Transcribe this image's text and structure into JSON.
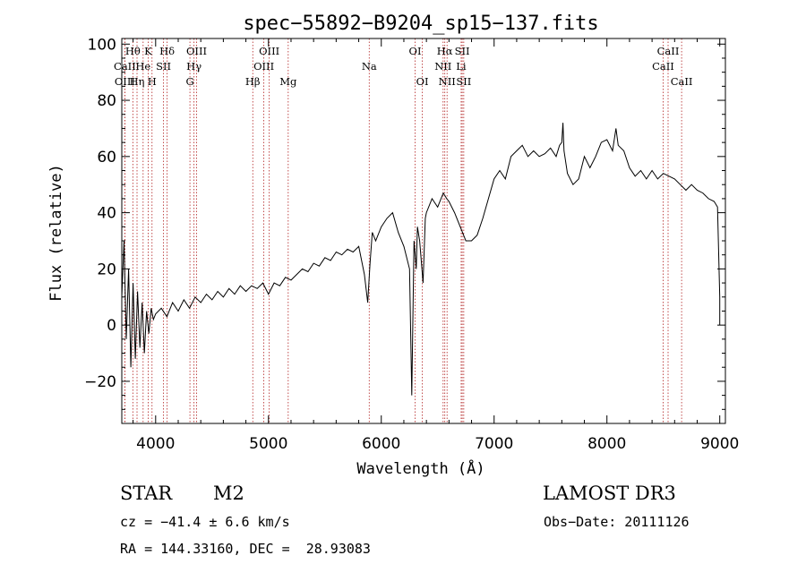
{
  "chart_data": {
    "type": "line",
    "title": "spec−55892−B9204_sp15−137.fits",
    "xlabel": "Wavelength (Å)",
    "ylabel": "Flux (relative)",
    "xlim": [
      3700,
      9050
    ],
    "ylim": [
      -35,
      102
    ],
    "xticks": [
      4000,
      5000,
      6000,
      7000,
      8000,
      9000
    ],
    "xtick_labels": [
      "4000",
      "5000",
      "6000",
      "7000",
      "8000",
      "9000"
    ],
    "yticks": [
      -20,
      0,
      20,
      40,
      60,
      80,
      100
    ],
    "ytick_labels": [
      "−20",
      "0",
      "20",
      "40",
      "60",
      "80",
      "100"
    ],
    "series": [
      {
        "name": "spectrum",
        "x": [
          3700,
          3720,
          3740,
          3760,
          3780,
          3800,
          3820,
          3840,
          3860,
          3880,
          3900,
          3920,
          3940,
          3960,
          3980,
          4000,
          4050,
          4100,
          4150,
          4200,
          4250,
          4300,
          4350,
          4400,
          4450,
          4500,
          4550,
          4600,
          4650,
          4700,
          4750,
          4800,
          4850,
          4900,
          4950,
          5000,
          5050,
          5100,
          5150,
          5200,
          5250,
          5300,
          5350,
          5400,
          5450,
          5500,
          5550,
          5600,
          5650,
          5700,
          5750,
          5800,
          5850,
          5880,
          5900,
          5920,
          5950,
          6000,
          6050,
          6100,
          6150,
          6200,
          6250,
          6270,
          6290,
          6300,
          6310,
          6320,
          6340,
          6370,
          6390,
          6400,
          6450,
          6500,
          6550,
          6580,
          6600,
          6650,
          6700,
          6750,
          6800,
          6850,
          6900,
          6950,
          7000,
          7050,
          7100,
          7150,
          7200,
          7250,
          7300,
          7350,
          7400,
          7450,
          7500,
          7550,
          7580,
          7600,
          7610,
          7620,
          7650,
          7700,
          7750,
          7800,
          7850,
          7900,
          7950,
          8000,
          8050,
          8080,
          8100,
          8150,
          8200,
          8250,
          8300,
          8350,
          8400,
          8450,
          8500,
          8550,
          8600,
          8650,
          8700,
          8750,
          8800,
          8850,
          8900,
          8950,
          8980,
          9000,
          9000
        ],
        "y": [
          10,
          30,
          -5,
          20,
          -15,
          15,
          -12,
          12,
          -8,
          8,
          -10,
          5,
          -3,
          6,
          2,
          4,
          6,
          3,
          8,
          5,
          9,
          6,
          10,
          8,
          11,
          9,
          12,
          10,
          13,
          11,
          14,
          12,
          14,
          13,
          15,
          11,
          15,
          14,
          17,
          16,
          18,
          20,
          19,
          22,
          21,
          24,
          23,
          26,
          25,
          27,
          26,
          28,
          18,
          8,
          22,
          33,
          30,
          35,
          38,
          40,
          33,
          28,
          20,
          -25,
          30,
          25,
          20,
          35,
          30,
          15,
          38,
          40,
          45,
          42,
          47,
          45,
          44,
          40,
          35,
          30,
          30,
          32,
          38,
          45,
          52,
          55,
          52,
          60,
          62,
          64,
          60,
          62,
          60,
          61,
          63,
          60,
          64,
          65,
          72,
          62,
          54,
          50,
          52,
          60,
          56,
          60,
          65,
          66,
          62,
          70,
          64,
          62,
          56,
          53,
          55,
          52,
          55,
          52,
          54,
          53,
          52,
          50,
          48,
          50,
          48,
          47,
          45,
          44,
          42,
          10,
          0
        ]
      }
    ],
    "spectral_lines": [
      {
        "label": "Hθ",
        "wavelength": 3798,
        "row": 1
      },
      {
        "label": "CaII",
        "wavelength": 3727,
        "row": 2
      },
      {
        "label": "OIII",
        "wavelength": 3727,
        "row": 3
      },
      {
        "label": "Hη",
        "wavelength": 3835,
        "row": 3
      },
      {
        "label": "K",
        "wavelength": 3934,
        "row": 1
      },
      {
        "label": "He",
        "wavelength": 3889,
        "row": 2
      },
      {
        "label": "H",
        "wavelength": 3968,
        "row": 3
      },
      {
        "label": "SII",
        "wavelength": 4070,
        "row": 2
      },
      {
        "label": "Hδ",
        "wavelength": 4102,
        "row": 1
      },
      {
        "label": "OIII",
        "wavelength": 4363,
        "row": 1
      },
      {
        "label": "Hγ",
        "wavelength": 4340,
        "row": 2
      },
      {
        "label": "G",
        "wavelength": 4304,
        "row": 3
      },
      {
        "label": "OIII",
        "wavelength": 5007,
        "row": 1
      },
      {
        "label": "OIII",
        "wavelength": 4959,
        "row": 2
      },
      {
        "label": "Hβ",
        "wavelength": 4861,
        "row": 3
      },
      {
        "label": "Mg",
        "wavelength": 5175,
        "row": 3
      },
      {
        "label": "Na",
        "wavelength": 5893,
        "row": 2
      },
      {
        "label": "OI",
        "wavelength": 6300,
        "row": 1
      },
      {
        "label": "OI",
        "wavelength": 6364,
        "row": 3
      },
      {
        "label": "Hα",
        "wavelength": 6563,
        "row": 1
      },
      {
        "label": "SII",
        "wavelength": 6717,
        "row": 1
      },
      {
        "label": "NII",
        "wavelength": 6548,
        "row": 2
      },
      {
        "label": "Li",
        "wavelength": 6708,
        "row": 2
      },
      {
        "label": "NII",
        "wavelength": 6583,
        "row": 3
      },
      {
        "label": "SII",
        "wavelength": 6731,
        "row": 3
      },
      {
        "label": "CaII",
        "wavelength": 8542,
        "row": 1
      },
      {
        "label": "CaII",
        "wavelength": 8498,
        "row": 2
      },
      {
        "label": "CaII",
        "wavelength": 8662,
        "row": 3
      }
    ]
  },
  "info": {
    "object_class": "STAR",
    "subclass": "M2",
    "survey": "LAMOST DR3",
    "cz": "cz = −41.4 ± 6.6 km/s",
    "obs_date": "Obs−Date: 20111126",
    "coords": "RA = 144.33160, DEC =  28.93083"
  }
}
